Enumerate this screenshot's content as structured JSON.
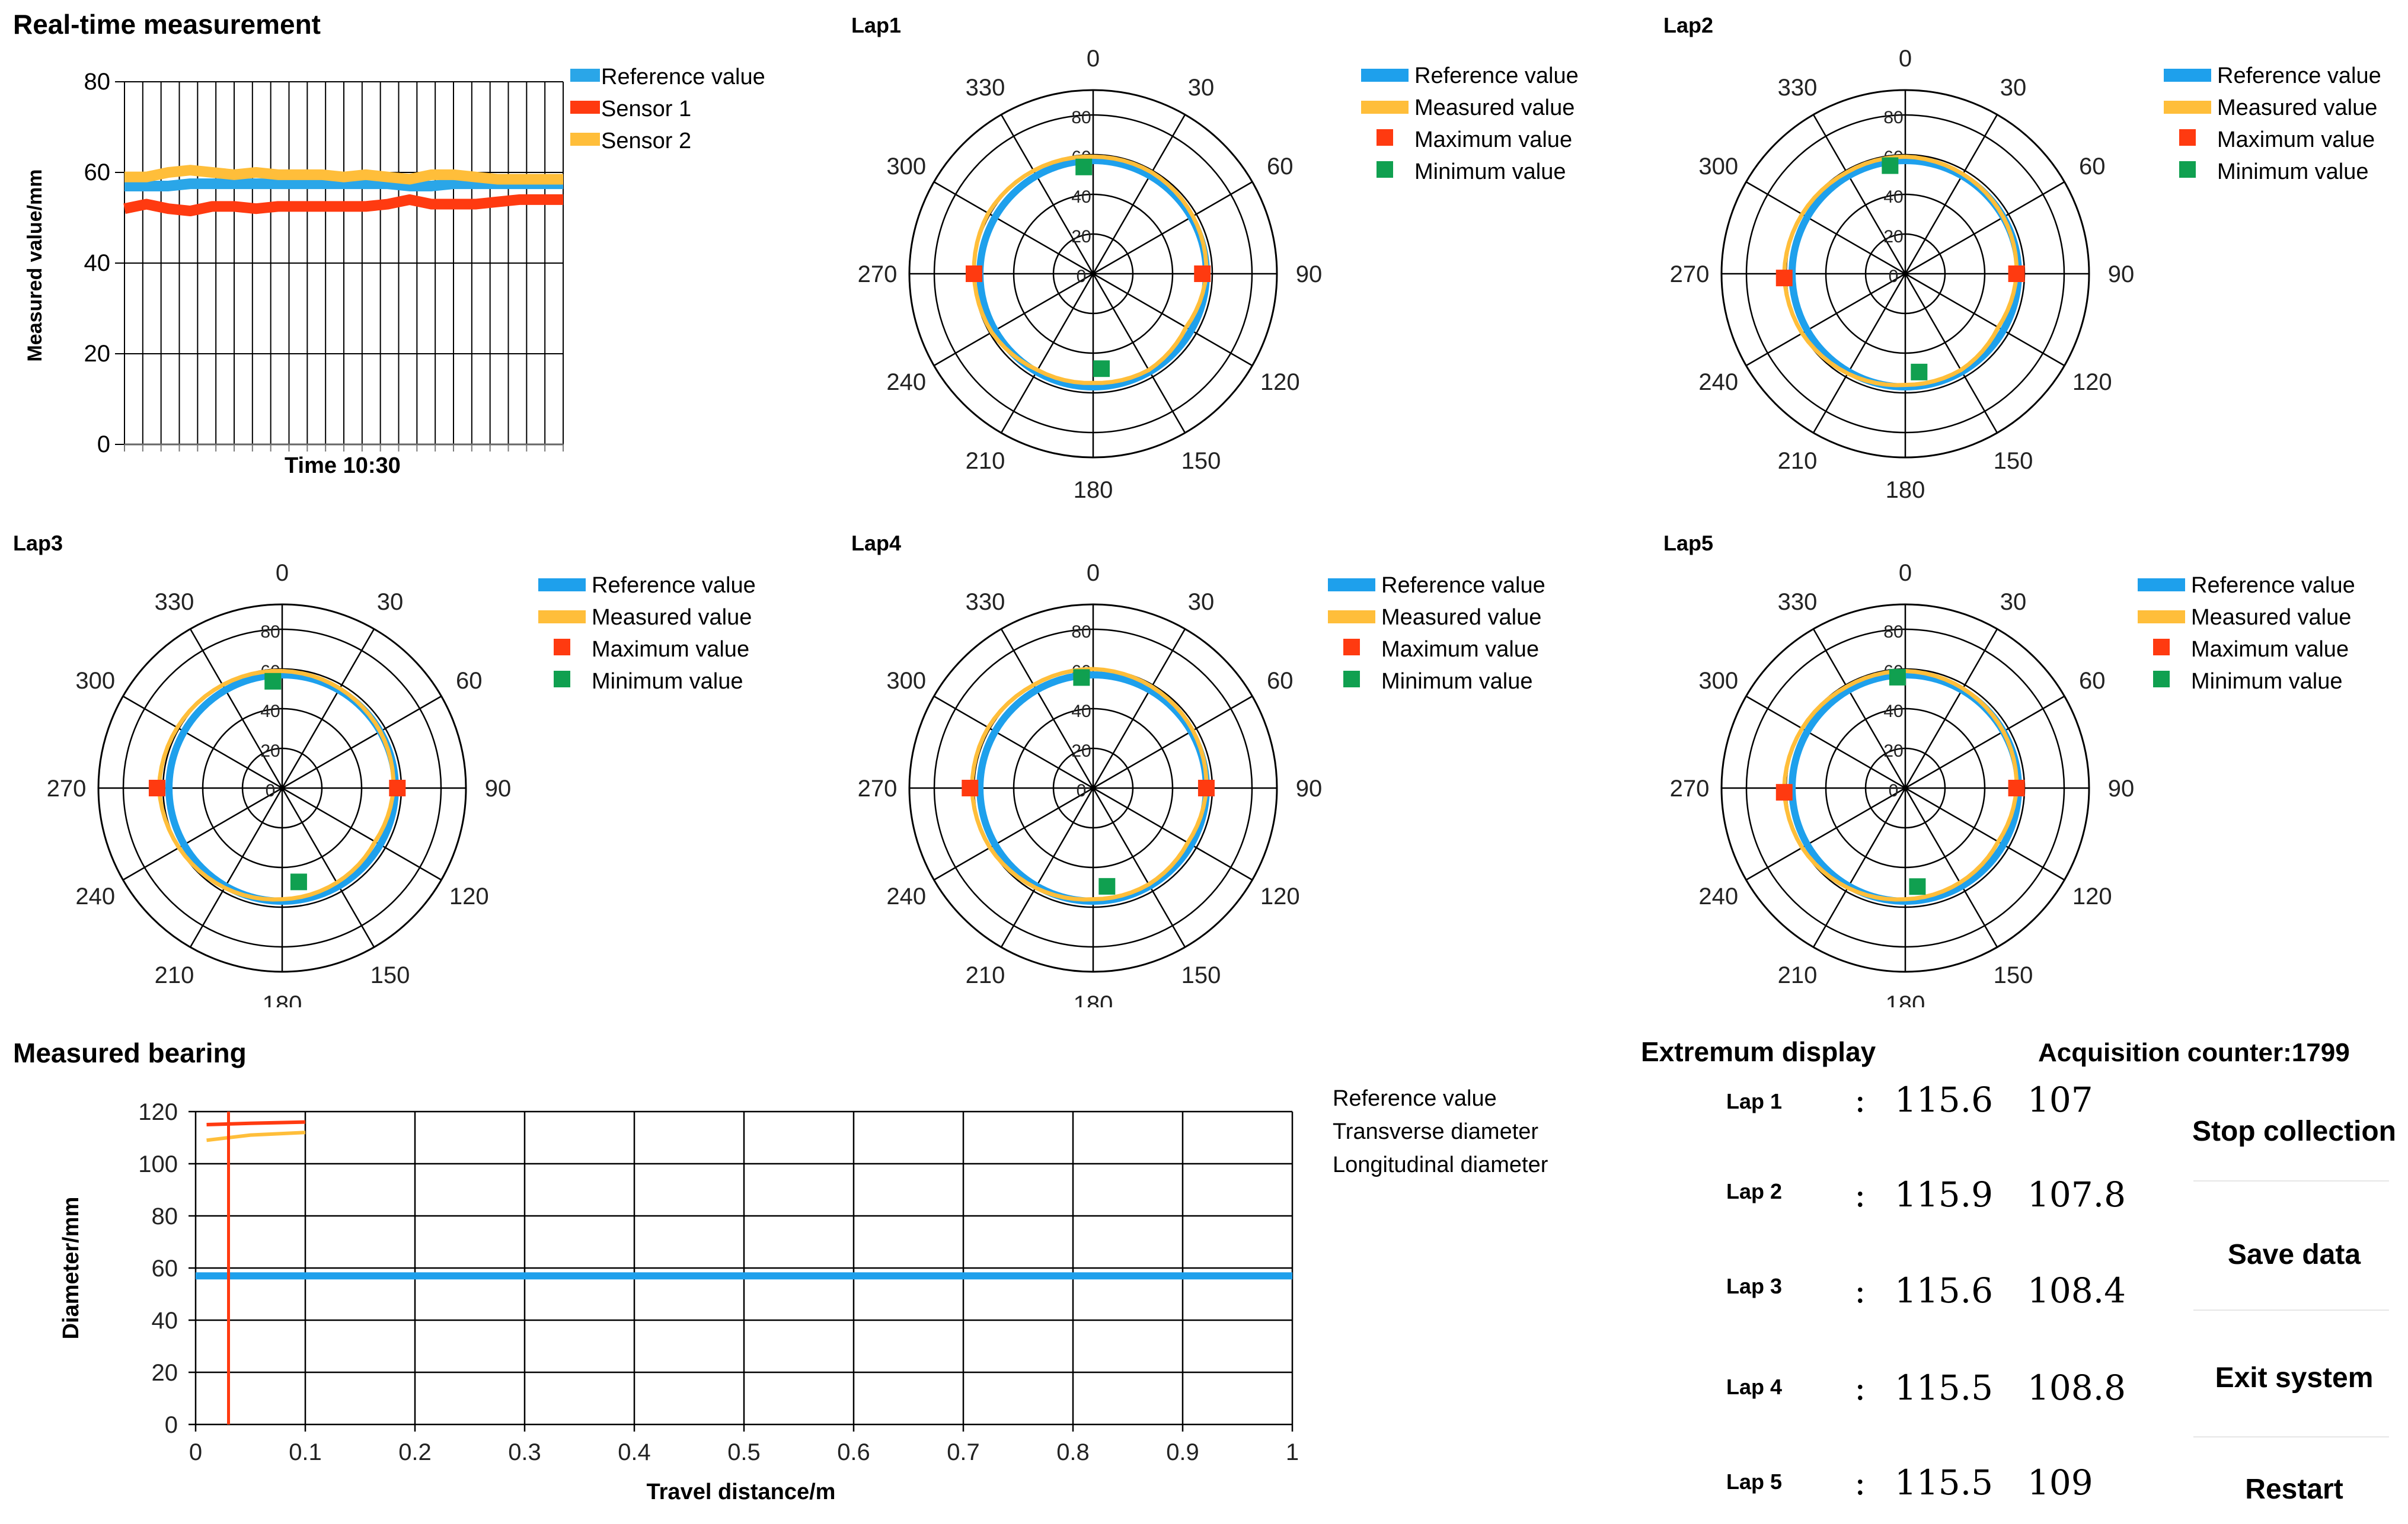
{
  "realtime": {
    "title": "Real-time measurement",
    "colors": {
      "reference": "#2aa6e8",
      "sensor1": "#ff3a10",
      "sensor2": "#ffbe3a"
    },
    "legend": [
      "Reference value",
      "Sensor 1",
      "Sensor 2"
    ]
  },
  "laps": {
    "legend": [
      "Reference value",
      "Measured value",
      "Maximum value",
      "Minimum value"
    ],
    "colors": {
      "reference": "#1ea0ec",
      "measured": "#ffbe3a",
      "max": "#ff3a10",
      "min": "#10a050"
    },
    "titles": [
      "Lap1",
      "Lap2",
      "Lap3",
      "Lap4",
      "Lap5"
    ]
  },
  "bearing": {
    "title": "Measured bearing",
    "legend": [
      "Reference value",
      "Transverse diameter",
      "Longitudinal diameter"
    ]
  },
  "extremum": {
    "title": "Extremum display",
    "counter": "Acquisition counter:1799",
    "colon": ":",
    "rows": [
      {
        "lap": "Lap 1",
        "max": "115.6",
        "min": "107"
      },
      {
        "lap": "Lap 2",
        "max": "115.9",
        "min": "107.8"
      },
      {
        "lap": "Lap 3",
        "max": "115.6",
        "min": "108.4"
      },
      {
        "lap": "Lap 4",
        "max": "115.5",
        "min": "108.8"
      },
      {
        "lap": "Lap 5",
        "max": "115.5",
        "min": "109"
      }
    ]
  },
  "buttons": {
    "stop": "Stop collection",
    "save": "Save data",
    "exit": "Exit system",
    "restart": "Restart"
  },
  "chart_data": [
    {
      "type": "line",
      "title": "",
      "xlabel": "Time 10:30",
      "ylabel": "Measured value/mm",
      "ylim": [
        0,
        80
      ],
      "yticks": [
        0,
        20,
        40,
        60,
        80
      ],
      "x": [
        0,
        1,
        2,
        3,
        4,
        5,
        6,
        7,
        8,
        9,
        10,
        11,
        12,
        13,
        14,
        15,
        16,
        17,
        18,
        19,
        20
      ],
      "grid": true,
      "legend_position": "top-right",
      "series": [
        {
          "name": "Reference value",
          "values": [
            57,
            57,
            57,
            57.5,
            57.5,
            57.5,
            57.5,
            57.5,
            57.5,
            57.5,
            57.5,
            57.5,
            57.5,
            57,
            57,
            57.5,
            57.5,
            57.5,
            57.5,
            57.5,
            57.5
          ]
        },
        {
          "name": "Sensor 1",
          "values": [
            52,
            53,
            52,
            51.5,
            52.5,
            52.5,
            52,
            52.5,
            52.5,
            52.5,
            52.5,
            52.5,
            53,
            54,
            53,
            53,
            53,
            53.5,
            54,
            54,
            54
          ]
        },
        {
          "name": "Sensor 2",
          "values": [
            59,
            59,
            60,
            60.5,
            60,
            59.5,
            60,
            59.5,
            59.5,
            59.5,
            59,
            59.5,
            59,
            58.5,
            59.5,
            59.5,
            59,
            58.5,
            58.5,
            58.5,
            58.5
          ]
        }
      ]
    },
    {
      "type": "polar",
      "charts": [
        {
          "title": "Lap1",
          "rlim": [
            0,
            80
          ],
          "rticks": [
            0,
            20,
            40,
            60,
            80
          ],
          "angle_ticks": [
            0,
            30,
            60,
            90,
            120,
            150,
            180,
            210,
            240,
            270,
            300,
            330
          ],
          "reference_radius": 57,
          "measured_radii": [
            59,
            59,
            58,
            57,
            54,
            56,
            55,
            56,
            59,
            60,
            61,
            60
          ],
          "max": {
            "angle": 270,
            "value": 60
          },
          "min": [
            {
              "angle": 355,
              "value": 54
            },
            {
              "angle": 175,
              "value": 48
            }
          ]
        },
        {
          "title": "Lap2",
          "rlim": [
            0,
            80
          ],
          "rticks": [
            0,
            20,
            40,
            60,
            80
          ],
          "angle_ticks": [
            0,
            30,
            60,
            90,
            120,
            150,
            180,
            210,
            240,
            270,
            300,
            330
          ],
          "reference_radius": 57,
          "measured_radii": [
            59,
            58,
            57,
            56,
            54,
            56,
            56,
            58,
            60,
            61,
            60,
            59
          ],
          "max": {
            "angle": 268,
            "value": 61
          },
          "min": [
            {
              "angle": 352,
              "value": 55
            },
            {
              "angle": 172,
              "value": 50
            }
          ]
        },
        {
          "title": "Lap3",
          "rlim": [
            0,
            80
          ],
          "rticks": [
            0,
            20,
            40,
            60,
            80
          ],
          "angle_ticks": [
            0,
            30,
            60,
            90,
            120,
            150,
            180,
            210,
            240,
            270,
            300,
            330
          ],
          "reference_radius": 57,
          "measured_radii": [
            59,
            58,
            57,
            56,
            54,
            55,
            56,
            58,
            60,
            62,
            61,
            60
          ],
          "max": {
            "angle": 270,
            "value": 63
          },
          "min": [
            {
              "angle": 355,
              "value": 54
            },
            {
              "angle": 170,
              "value": 48
            }
          ]
        },
        {
          "title": "Lap4",
          "rlim": [
            0,
            80
          ],
          "rticks": [
            0,
            20,
            40,
            60,
            80
          ],
          "angle_ticks": [
            0,
            30,
            60,
            90,
            120,
            150,
            180,
            210,
            240,
            270,
            300,
            330
          ],
          "reference_radius": 57,
          "measured_radii": [
            60,
            59,
            58,
            57,
            55,
            56,
            56,
            58,
            60,
            61,
            61,
            60
          ],
          "max": {
            "angle": 270,
            "value": 62
          },
          "min": [
            {
              "angle": 354,
              "value": 56
            },
            {
              "angle": 172,
              "value": 50
            }
          ]
        },
        {
          "title": "Lap5",
          "rlim": [
            0,
            80
          ],
          "rticks": [
            0,
            20,
            40,
            60,
            80
          ],
          "angle_ticks": [
            0,
            30,
            60,
            90,
            120,
            150,
            180,
            210,
            240,
            270,
            300,
            330
          ],
          "reference_radius": 57,
          "measured_radii": [
            59,
            58,
            57,
            56,
            54,
            55,
            56,
            58,
            60,
            61,
            60,
            59
          ],
          "max": {
            "angle": 268,
            "value": 61
          },
          "min": [
            {
              "angle": 356,
              "value": 56
            },
            {
              "angle": 173,
              "value": 50
            }
          ]
        }
      ]
    },
    {
      "type": "line",
      "title": "",
      "xlabel": "Travel distance/m",
      "ylabel": "Diameter/mm",
      "xlim": [
        0,
        1
      ],
      "ylim": [
        0,
        120
      ],
      "xticks": [
        0,
        0.1,
        0.2,
        0.3,
        0.4,
        0.5,
        0.6,
        0.7,
        0.8,
        0.9,
        1
      ],
      "yticks": [
        0,
        20,
        40,
        60,
        80,
        100,
        120
      ],
      "grid": true,
      "series": [
        {
          "name": "Reference value",
          "x": [
            0,
            1
          ],
          "values": [
            57,
            57
          ]
        },
        {
          "name": "Transverse diameter",
          "x": [
            0.01,
            0.05,
            0.1
          ],
          "values": [
            115,
            115.5,
            116
          ]
        },
        {
          "name": "Longitudinal diameter",
          "x": [
            0.01,
            0.05,
            0.1
          ],
          "values": [
            109,
            111,
            112
          ]
        },
        {
          "name": "",
          "x": [
            0.03,
            0.03
          ],
          "values": [
            0,
            120
          ]
        }
      ]
    }
  ]
}
